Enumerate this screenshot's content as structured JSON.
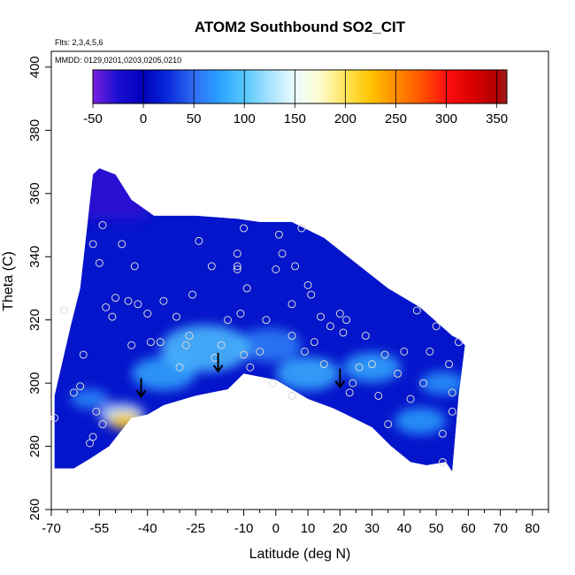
{
  "chart_data": {
    "type": "heatmap",
    "title": "ATOM2 Southbound SO2_CIT",
    "flights_note": "Flts: 2,3,4,5,6",
    "dates_note": "MMDD: 0129,0201,0203,0205,0210",
    "xlabel": "Latitude (deg N)",
    "ylabel": "Theta (C)",
    "xlim": [
      -70,
      85
    ],
    "ylim": [
      260,
      405
    ],
    "x_ticks": [
      -70,
      -55,
      -40,
      -25,
      -10,
      0,
      10,
      20,
      30,
      40,
      50,
      60,
      70,
      80
    ],
    "x_minor_ticks": [
      -65,
      -60,
      -50,
      -45,
      -35,
      -30,
      -20,
      -15,
      -5,
      5,
      15,
      25,
      35,
      45,
      55,
      65,
      75,
      85
    ],
    "y_ticks": [
      260,
      280,
      300,
      320,
      340,
      360,
      380,
      400
    ],
    "colorbar": {
      "min": -50,
      "max": 360,
      "ticks": [
        -50,
        0,
        50,
        100,
        150,
        200,
        250,
        300,
        350
      ],
      "stops": [
        {
          "v": -50,
          "c": "#7a1fe0"
        },
        {
          "v": -25,
          "c": "#1a0fd0"
        },
        {
          "v": 0,
          "c": "#0000bb"
        },
        {
          "v": 25,
          "c": "#0a2bdd"
        },
        {
          "v": 50,
          "c": "#2f6cf2"
        },
        {
          "v": 75,
          "c": "#2aa0ff"
        },
        {
          "v": 100,
          "c": "#55c8ff"
        },
        {
          "v": 125,
          "c": "#a8e2ff"
        },
        {
          "v": 150,
          "c": "#eafbff"
        },
        {
          "v": 175,
          "c": "#fffcd0"
        },
        {
          "v": 200,
          "c": "#ffe45a"
        },
        {
          "v": 225,
          "c": "#ffc400"
        },
        {
          "v": 250,
          "c": "#ff8c00"
        },
        {
          "v": 275,
          "c": "#ff5500"
        },
        {
          "v": 300,
          "c": "#ff1010"
        },
        {
          "v": 325,
          "c": "#dd0000"
        },
        {
          "v": 350,
          "c": "#b00000"
        },
        {
          "v": 360,
          "c": "#a02020"
        }
      ]
    },
    "tropopause_arrows": [
      {
        "lat": -42,
        "theta": 296
      },
      {
        "lat": -18,
        "theta": 304
      },
      {
        "lat": 20,
        "theta": 299
      }
    ],
    "region_top": [
      [
        -69,
        296
      ],
      [
        -64,
        318
      ],
      [
        -61,
        330
      ],
      [
        -57,
        366
      ],
      [
        -55,
        368
      ],
      [
        -50,
        366
      ],
      [
        -45,
        358
      ],
      [
        -38,
        353
      ],
      [
        -25,
        353
      ],
      [
        -12,
        352
      ],
      [
        -5,
        351
      ],
      [
        5,
        351
      ],
      [
        15,
        346
      ],
      [
        25,
        338
      ],
      [
        35,
        330
      ],
      [
        45,
        324
      ],
      [
        55,
        315
      ],
      [
        57,
        314
      ],
      [
        59,
        312
      ]
    ],
    "region_bottom": [
      [
        59,
        312
      ],
      [
        57,
        296
      ],
      [
        55,
        272
      ],
      [
        53,
        275
      ],
      [
        47,
        274
      ],
      [
        42,
        275
      ],
      [
        36,
        280
      ],
      [
        30,
        286
      ],
      [
        22,
        290
      ],
      [
        18,
        292
      ],
      [
        10,
        295
      ],
      [
        0,
        301
      ],
      [
        -10,
        303
      ],
      [
        -15,
        298
      ],
      [
        -25,
        296
      ],
      [
        -35,
        293
      ],
      [
        -40,
        290
      ],
      [
        -45,
        289
      ],
      [
        -52,
        280
      ],
      [
        -58,
        276
      ],
      [
        -63,
        273
      ],
      [
        -69,
        273
      ]
    ],
    "hotspots": [
      {
        "lat": -47,
        "theta": 288,
        "value": 220,
        "r": 5
      },
      {
        "lat": -48,
        "theta": 290,
        "value": 140,
        "r": 7
      },
      {
        "lat": -22,
        "theta": 311,
        "value": 95,
        "r": 14
      },
      {
        "lat": -35,
        "theta": 303,
        "value": 80,
        "r": 10
      },
      {
        "lat": 10,
        "theta": 303,
        "value": 85,
        "r": 10
      },
      {
        "lat": 30,
        "theta": 305,
        "value": 80,
        "r": 9
      },
      {
        "lat": 45,
        "theta": 288,
        "value": 75,
        "r": 8
      },
      {
        "lat": 52,
        "theta": 300,
        "value": 70,
        "r": 7
      },
      {
        "lat": -2,
        "theta": 312,
        "value": 60,
        "r": 10
      },
      {
        "lat": -58,
        "theta": 295,
        "value": 65,
        "r": 6
      }
    ],
    "observations": [
      [
        -69,
        289
      ],
      [
        -66,
        323
      ],
      [
        -63,
        297
      ],
      [
        -61,
        299
      ],
      [
        -58,
        281
      ],
      [
        -57,
        283
      ],
      [
        -60,
        309
      ],
      [
        -57,
        344
      ],
      [
        -54,
        350
      ],
      [
        -55,
        338
      ],
      [
        -53,
        324
      ],
      [
        -50,
        327
      ],
      [
        -51,
        321
      ],
      [
        -48,
        344
      ],
      [
        -44,
        337
      ],
      [
        -46,
        326
      ],
      [
        -43,
        325
      ],
      [
        -39,
        313
      ],
      [
        -36,
        313
      ],
      [
        -35,
        326
      ],
      [
        -31,
        321
      ],
      [
        -28,
        312
      ],
      [
        -27,
        315
      ],
      [
        -26,
        328
      ],
      [
        -24,
        345
      ],
      [
        -19,
        308
      ],
      [
        -17,
        312
      ],
      [
        -10,
        309
      ],
      [
        -11,
        322
      ],
      [
        -12,
        341
      ],
      [
        -12,
        337
      ],
      [
        -12,
        336
      ],
      [
        -10,
        349
      ],
      [
        -9,
        330
      ],
      [
        -8,
        305
      ],
      [
        -5,
        310
      ],
      [
        -3,
        320
      ],
      [
        0,
        336
      ],
      [
        1,
        347
      ],
      [
        2,
        341
      ],
      [
        5,
        325
      ],
      [
        5,
        315
      ],
      [
        6,
        337
      ],
      [
        8,
        349
      ],
      [
        9,
        310
      ],
      [
        10,
        331
      ],
      [
        11,
        328
      ],
      [
        12,
        313
      ],
      [
        14,
        321
      ],
      [
        15,
        306
      ],
      [
        17,
        318
      ],
      [
        20,
        322
      ],
      [
        21,
        316
      ],
      [
        22,
        320
      ],
      [
        23,
        297
      ],
      [
        24,
        300
      ],
      [
        26,
        305
      ],
      [
        28,
        315
      ],
      [
        30,
        306
      ],
      [
        32,
        296
      ],
      [
        34,
        309
      ],
      [
        38,
        303
      ],
      [
        40,
        310
      ],
      [
        42,
        295
      ],
      [
        44,
        323
      ],
      [
        46,
        300
      ],
      [
        48,
        310
      ],
      [
        50,
        318
      ],
      [
        52,
        284
      ],
      [
        52,
        275
      ],
      [
        54,
        306
      ],
      [
        55,
        297
      ],
      [
        55,
        291
      ],
      [
        57,
        313
      ],
      [
        -1,
        300
      ],
      [
        -30,
        305
      ],
      [
        -45,
        312
      ],
      [
        -56,
        291
      ],
      [
        -54,
        287
      ],
      [
        -40,
        322
      ],
      [
        -20,
        337
      ],
      [
        -15,
        320
      ],
      [
        5,
        296
      ],
      [
        35,
        287
      ]
    ]
  }
}
